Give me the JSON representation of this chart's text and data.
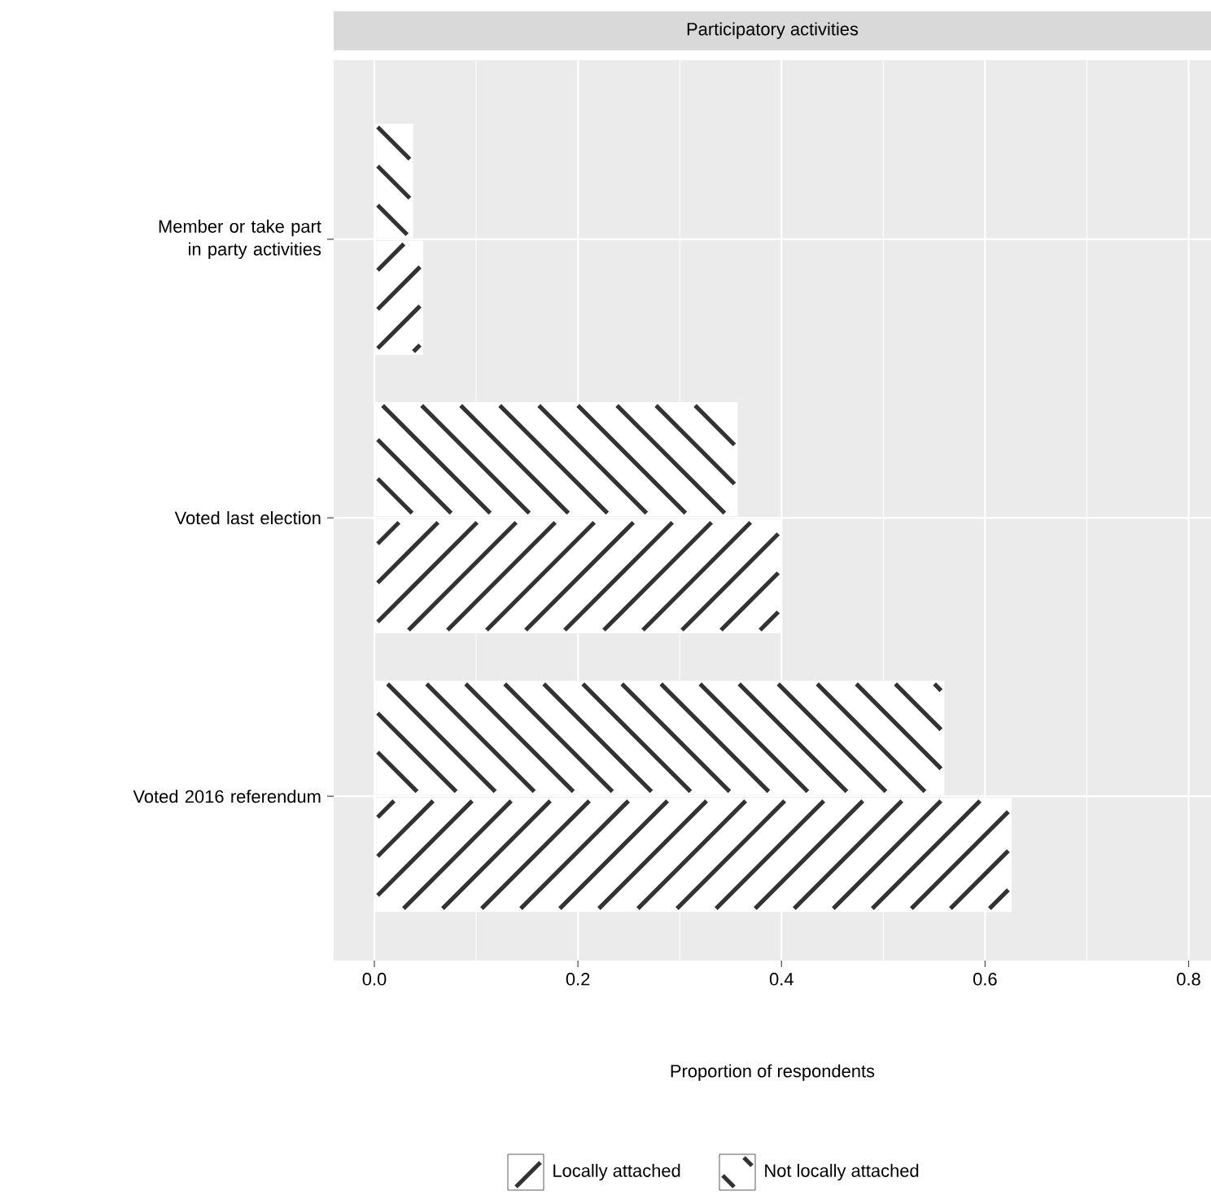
{
  "chart_data": {
    "type": "bar",
    "orientation": "horizontal",
    "title": "Participatory activities",
    "xlabel": "Proportion of respondents",
    "categories": [
      "Member or take part in party activities",
      "Voted last election",
      "Voted 2016 referendum"
    ],
    "series": [
      {
        "name": "Locally attached",
        "color": "#ffffff",
        "values": [
          0.048,
          0.4,
          0.626
        ]
      },
      {
        "name": "Not locally attached",
        "color": "#ffffff",
        "values": [
          0.038,
          0.357,
          0.56
        ]
      }
    ],
    "xlim": [
      -0.04,
      0.822
    ],
    "xticks": [
      {
        "value": 0,
        "label": "0.0"
      },
      {
        "value": 0.2,
        "label": "0.2"
      },
      {
        "value": 0.4,
        "label": "0.4"
      },
      {
        "value": 0.6,
        "label": "0.6"
      },
      {
        "value": 0.8,
        "label": "0.8"
      }
    ],
    "grid": true,
    "legend": "bottom"
  }
}
